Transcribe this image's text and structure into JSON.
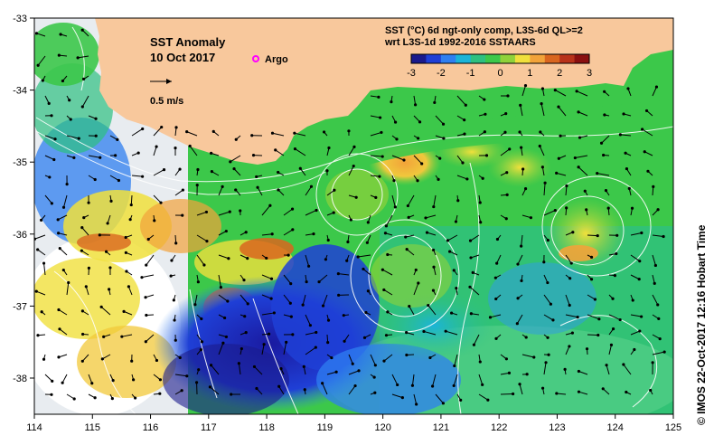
{
  "map": {
    "title": "SST Anomaly",
    "date": "10 Oct 2017",
    "argo_label": "Argo",
    "scale_label": "0.5 m/s",
    "legend_title_line1": "SST (°C) 6d ngt-only comp, L3S-6d QL>=2",
    "legend_title_line2": "wrt L3S-1d 1992-2016 SSTAARS",
    "colorbar_ticks": [
      "-3",
      "-2",
      "-1",
      "0",
      "1",
      "2",
      "3"
    ],
    "colorbar_colors": [
      "#1a1a8c",
      "#1f3fd6",
      "#2f7ff0",
      "#1bb4d8",
      "#2ec080",
      "#3cc84a",
      "#8fd23a",
      "#f0e03c",
      "#f2a33a",
      "#d9661f",
      "#b8321a",
      "#8a1010"
    ],
    "credit": "© IMOS 22-Oct-2017 12:16 Hobart Time",
    "lon_ticks": [
      "114",
      "115",
      "116",
      "117",
      "118",
      "119",
      "120",
      "121",
      "122",
      "123",
      "124",
      "125"
    ],
    "lat_ticks": [
      "-33",
      "-34",
      "-35",
      "-36",
      "-37",
      "-38"
    ],
    "colors": {
      "land": "#f8c89c",
      "argo": "#ff00ff"
    }
  }
}
